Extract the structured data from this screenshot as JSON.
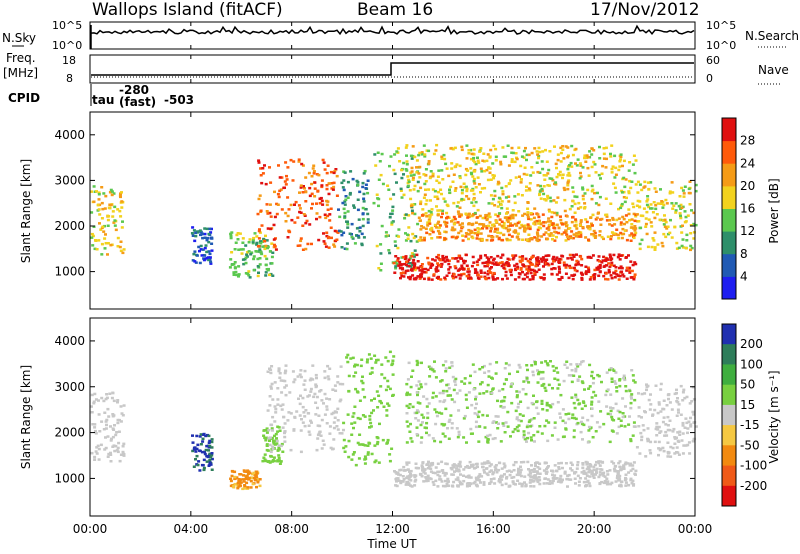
{
  "header": {
    "station": "Wallops Island (fitACF)",
    "beam": "Beam 16",
    "date": "17/Nov/2012"
  },
  "panels": {
    "nsky_label": "N.Sky",
    "nsearch_label": "N.Search",
    "freq_label_1": "Freq.",
    "freq_label_2": "[MHz]",
    "nave_label": "Nave",
    "cpid_label": "CPID",
    "cpid_tau": "tau",
    "cpid_fast": "(fast)",
    "cpid_minus280": "-280",
    "cpid_minus503": "-503",
    "nsky_ticks": [
      "10^5",
      "10^0"
    ],
    "nsearch_ticks": [
      "10^5",
      "10^0"
    ],
    "freq_ticks": [
      "18",
      "8"
    ],
    "nave_ticks": [
      "60",
      "0"
    ]
  },
  "chart_data": [
    {
      "type": "heatmap",
      "name": "Power",
      "xlabel": "",
      "ylabel": "Slant Range [km]",
      "x_ticks": [
        "00:00",
        "04:00",
        "08:00",
        "12:00",
        "16:00",
        "20:00",
        "00:00"
      ],
      "y_ticks": [
        1000,
        2000,
        3000,
        4000
      ],
      "ylim": [
        180,
        4500
      ],
      "colorbar": {
        "label": "Power [dB]",
        "ticks": [
          4,
          8,
          12,
          16,
          20,
          24,
          28
        ],
        "colors": [
          "#1e1ef0",
          "#205ab4",
          "#2e8f6a",
          "#5bc84f",
          "#f2d21e",
          "#f59b16",
          "#ff5a0a",
          "#e01010"
        ]
      },
      "regions": [
        {
          "t_start": 0.0,
          "t_end": 1.3,
          "r_low": 1400,
          "r_high": 2900,
          "level": 4
        },
        {
          "t_start": 4.0,
          "t_end": 4.8,
          "r_low": 1200,
          "r_high": 2000,
          "level": 1
        },
        {
          "t_start": 5.5,
          "t_end": 7.2,
          "r_low": 900,
          "r_high": 1900,
          "level": 3
        },
        {
          "t_start": 6.6,
          "t_end": 9.8,
          "r_low": 1500,
          "r_high": 3500,
          "level": 6
        },
        {
          "t_start": 9.8,
          "t_end": 11.0,
          "r_low": 1500,
          "r_high": 3300,
          "level": 2
        },
        {
          "t_start": 11.2,
          "t_end": 13.0,
          "r_low": 1000,
          "r_high": 3800,
          "level": 3
        },
        {
          "t_start": 12.0,
          "t_end": 21.6,
          "r_low": 850,
          "r_high": 1400,
          "level": 7
        },
        {
          "t_start": 13.0,
          "t_end": 21.6,
          "r_low": 1700,
          "r_high": 2300,
          "level": 5
        },
        {
          "t_start": 12.5,
          "t_end": 21.6,
          "r_low": 2300,
          "r_high": 3800,
          "level": 4
        },
        {
          "t_start": 21.6,
          "t_end": 24.0,
          "r_low": 1500,
          "r_high": 3000,
          "level": 4
        }
      ]
    },
    {
      "type": "heatmap",
      "name": "Velocity",
      "xlabel": "Time UT",
      "ylabel": "Slant Range [km]",
      "x_ticks": [
        "00:00",
        "04:00",
        "08:00",
        "12:00",
        "16:00",
        "20:00",
        "00:00"
      ],
      "y_ticks": [
        1000,
        2000,
        3000,
        4000
      ],
      "ylim": [
        180,
        4500
      ],
      "colorbar": {
        "label": "Velocity [m s⁻¹]",
        "ticks": [
          200,
          100,
          50,
          15,
          -15,
          -50,
          -100,
          -200
        ],
        "colors": [
          "#2030b0",
          "#2e7d5a",
          "#3fae3f",
          "#78d040",
          "#c8c8c8",
          "#f5c842",
          "#f28a10",
          "#f05a18",
          "#e01010"
        ]
      },
      "regions": [
        {
          "t_start": 0.0,
          "t_end": 1.3,
          "r_low": 1400,
          "r_high": 2900,
          "velocity": 0
        },
        {
          "t_start": 4.0,
          "t_end": 4.8,
          "r_low": 1200,
          "r_high": 2000,
          "velocity": 200
        },
        {
          "t_start": 5.5,
          "t_end": 6.7,
          "r_low": 800,
          "r_high": 1200,
          "velocity": -60
        },
        {
          "t_start": 6.8,
          "t_end": 7.6,
          "r_low": 1300,
          "r_high": 2200,
          "velocity": 30
        },
        {
          "t_start": 7.0,
          "t_end": 10.0,
          "r_low": 1600,
          "r_high": 3500,
          "velocity": 0
        },
        {
          "t_start": 10.0,
          "t_end": 12.0,
          "r_low": 1300,
          "r_high": 3800,
          "velocity": 30
        },
        {
          "t_start": 12.0,
          "t_end": 21.6,
          "r_low": 850,
          "r_high": 1400,
          "velocity": 0
        },
        {
          "t_start": 12.5,
          "t_end": 21.6,
          "r_low": 1800,
          "r_high": 3600,
          "velocity": 20
        },
        {
          "t_start": 21.6,
          "t_end": 24.0,
          "r_low": 1500,
          "r_high": 3100,
          "velocity": 0
        }
      ]
    }
  ]
}
